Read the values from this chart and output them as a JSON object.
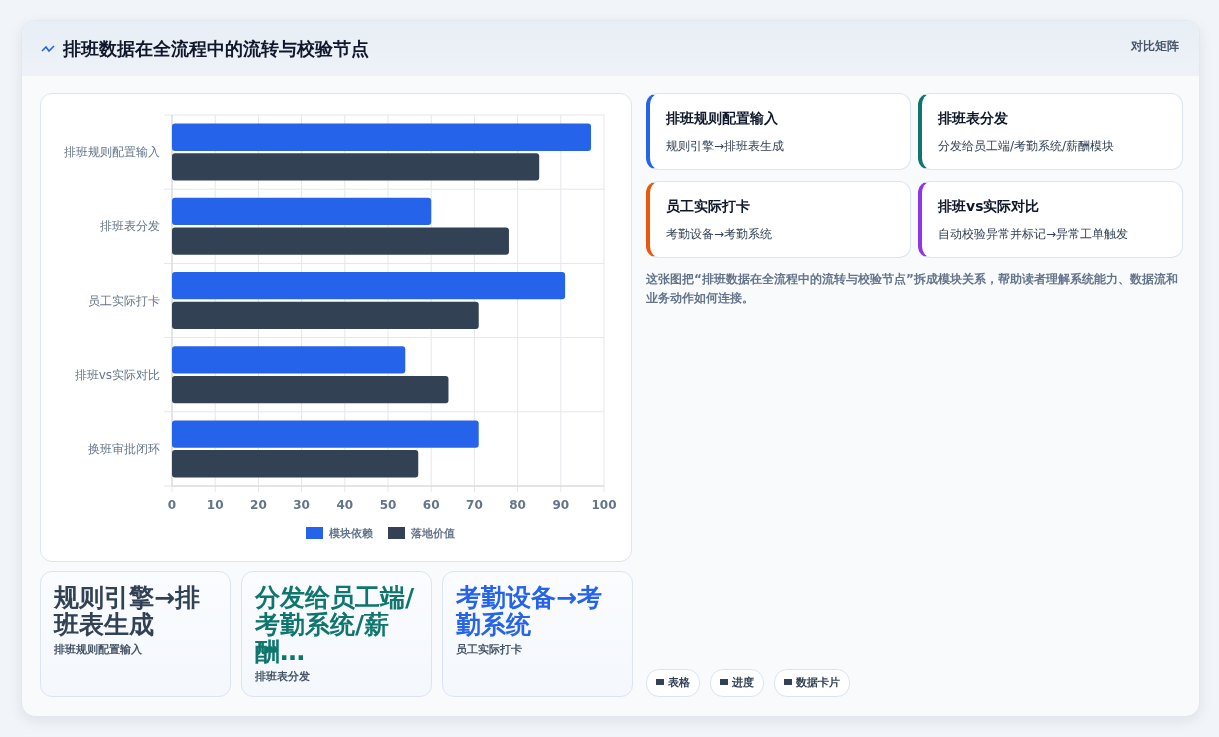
{
  "chart_data": [
    {
      "type": "bar",
      "orientation": "horizontal",
      "title": "排班数据在全流程中的流转与校验节点",
      "categories": [
        "排班规则配置输入",
        "排班表分发",
        "员工实际打卡",
        "排班vs实际对比",
        "换班审批闭环"
      ],
      "series": [
        {
          "name": "模块依赖",
          "color": "#2563eb",
          "values": [
            97,
            60,
            91,
            54,
            71
          ]
        },
        {
          "name": "落地价值",
          "color": "#334155",
          "values": [
            85,
            78,
            71,
            64,
            57
          ]
        }
      ],
      "xlim": [
        0,
        100
      ],
      "xticks": [
        0,
        10,
        20,
        30,
        40,
        50,
        60,
        70,
        80,
        90,
        100
      ],
      "grid": true,
      "legend": "bottom"
    },
    {
      "type": "other",
      "annotations": [
        "对比矩阵",
        "排班规则配置输入",
        "规则引擎→排班表生成",
        "排班表分发",
        "分发给员工端/考勤系统/薪酬模块",
        "员工实际打卡",
        "考勤设备→考勤系统",
        "排班vs实际对比",
        "自动校验异常并标记→异常工单触发",
        "这张图把“排班数据在全流程中的流转与校验节点”拆成模块关系，帮助读者理解系统能力、数据流和业务动作如何连接。",
        "规则引擎→排班表生成",
        "排班规则配置输入",
        "分发给员工端/考勤系统/薪酬…",
        "排班表分发",
        "考勤设备→考勤系统",
        "员工实际打卡",
        "表格",
        "进度",
        "数据卡片"
      ]
    }
  ]
}
